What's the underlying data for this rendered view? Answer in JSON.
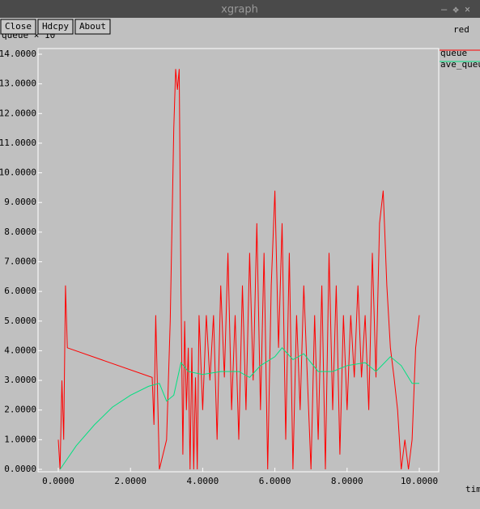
{
  "window": {
    "title": "xgraph",
    "buttons": [
      "Close",
      "Hdcpy",
      "About"
    ]
  },
  "chart_data": {
    "type": "line",
    "title": "red",
    "ylabel": "queue × 10",
    "xlabel": "time",
    "xlim": [
      0,
      10
    ],
    "ylim": [
      0,
      14
    ],
    "xticks": [
      {
        "value": 0,
        "label": "0.0000"
      },
      {
        "value": 2,
        "label": "2.0000"
      },
      {
        "value": 4,
        "label": "4.0000"
      },
      {
        "value": 6,
        "label": "6.0000"
      },
      {
        "value": 8,
        "label": "8.0000"
      },
      {
        "value": 10,
        "label": "10.0000"
      }
    ],
    "yticks": [
      {
        "value": 0,
        "label": "0.0000"
      },
      {
        "value": 1,
        "label": "1.0000"
      },
      {
        "value": 2,
        "label": "2.0000"
      },
      {
        "value": 3,
        "label": "3.0000"
      },
      {
        "value": 4,
        "label": "4.0000"
      },
      {
        "value": 5,
        "label": "5.0000"
      },
      {
        "value": 6,
        "label": "6.0000"
      },
      {
        "value": 7,
        "label": "7.0000"
      },
      {
        "value": 8,
        "label": "8.0000"
      },
      {
        "value": 9,
        "label": "9.0000"
      },
      {
        "value": 10,
        "label": "10.0000"
      },
      {
        "value": 11,
        "label": "11.0000"
      },
      {
        "value": 12,
        "label": "12.0000"
      },
      {
        "value": 13,
        "label": "13.0000"
      },
      {
        "value": 14,
        "label": "14.0000"
      }
    ],
    "series": [
      {
        "name": "queue",
        "color": "#ff0000",
        "x": [
          0,
          0.05,
          0.1,
          0.15,
          0.2,
          0.25,
          2.6,
          2.65,
          2.7,
          2.8,
          3.0,
          3.1,
          3.2,
          3.25,
          3.3,
          3.35,
          3.4,
          3.45,
          3.5,
          3.55,
          3.6,
          3.65,
          3.7,
          3.75,
          3.8,
          3.85,
          3.9,
          4.0,
          4.1,
          4.2,
          4.3,
          4.4,
          4.5,
          4.6,
          4.7,
          4.8,
          4.9,
          5.0,
          5.1,
          5.2,
          5.3,
          5.4,
          5.5,
          5.6,
          5.7,
          5.8,
          5.9,
          6.0,
          6.1,
          6.2,
          6.3,
          6.4,
          6.5,
          6.6,
          6.7,
          6.8,
          6.9,
          7.0,
          7.1,
          7.2,
          7.3,
          7.4,
          7.5,
          7.6,
          7.7,
          7.8,
          7.9,
          8.0,
          8.1,
          8.2,
          8.3,
          8.4,
          8.5,
          8.6,
          8.7,
          8.8,
          8.9,
          9.0,
          9.1,
          9.2,
          9.3,
          9.4,
          9.5,
          9.6,
          9.7,
          9.8,
          9.9,
          10.0
        ],
        "values": [
          1.0,
          0.0,
          3.0,
          1.0,
          6.2,
          4.1,
          3.1,
          1.5,
          5.2,
          0.0,
          1.0,
          5.0,
          11.5,
          13.5,
          12.8,
          13.5,
          6.0,
          0.5,
          5.0,
          2.0,
          4.1,
          0.0,
          4.1,
          0.0,
          3.1,
          0.0,
          5.2,
          2.0,
          5.2,
          3.0,
          5.2,
          1.0,
          6.2,
          3.1,
          7.3,
          2.0,
          5.2,
          1.0,
          6.2,
          2.0,
          7.3,
          3.0,
          8.3,
          2.0,
          7.3,
          0.0,
          6.2,
          9.4,
          4.1,
          8.3,
          1.0,
          7.3,
          0.0,
          5.2,
          2.0,
          6.2,
          3.1,
          0.0,
          5.2,
          1.0,
          6.2,
          0.0,
          7.3,
          2.0,
          6.2,
          0.5,
          5.2,
          2.0,
          5.2,
          3.1,
          6.2,
          3.1,
          5.2,
          2.0,
          7.3,
          3.1,
          8.3,
          9.4,
          6.2,
          4.1,
          3.1,
          2.0,
          0.0,
          1.0,
          0.0,
          1.0,
          4.1,
          5.2
        ]
      },
      {
        "name": "ave_queue",
        "color": "#00e080",
        "x": [
          0.05,
          0.5,
          1.0,
          1.5,
          2.0,
          2.5,
          2.8,
          3.0,
          3.2,
          3.4,
          3.6,
          4.0,
          4.5,
          5.0,
          5.3,
          5.6,
          6.0,
          6.2,
          6.5,
          6.8,
          7.2,
          7.6,
          8.0,
          8.5,
          8.8,
          9.2,
          9.5,
          9.8,
          10.0
        ],
        "values": [
          0.0,
          0.8,
          1.5,
          2.1,
          2.5,
          2.8,
          2.9,
          2.3,
          2.5,
          3.6,
          3.3,
          3.2,
          3.3,
          3.3,
          3.1,
          3.5,
          3.8,
          4.1,
          3.7,
          3.9,
          3.3,
          3.3,
          3.5,
          3.6,
          3.3,
          3.8,
          3.5,
          2.9,
          2.9
        ]
      }
    ]
  }
}
